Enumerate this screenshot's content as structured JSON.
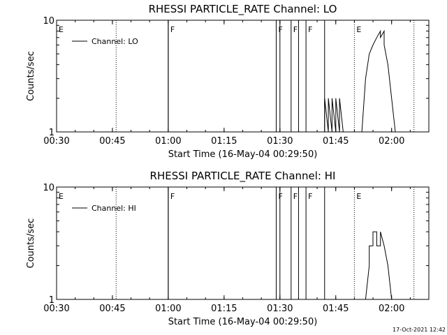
{
  "chart_data": [
    {
      "type": "line",
      "title": "RHESSI PARTICLE_RATE Channel: LO",
      "xlabel": "Start Time (16-May-04 00:29:50)",
      "ylabel": "Counts/sec",
      "y_scale": "log",
      "ylim": [
        1,
        10
      ],
      "y_ticks": [
        "1",
        "10"
      ],
      "x_ticks": [
        "00:30",
        "00:45",
        "01:00",
        "01:15",
        "01:30",
        "01:45",
        "02:00"
      ],
      "xlim": [
        "00:30",
        "02:10"
      ],
      "legend": {
        "entries": [
          "Channel: LO"
        ],
        "placement": "top-left"
      },
      "flags": [
        {
          "label": "E",
          "time": "00:30",
          "style": "solid"
        },
        {
          "label": "F",
          "time": "01:00",
          "style": "solid"
        },
        {
          "label": "F",
          "time": "01:29",
          "style": "solid"
        },
        {
          "label": "F",
          "time": "01:33",
          "style": "solid"
        },
        {
          "label": "F",
          "time": "01:37",
          "style": "solid"
        },
        {
          "label": "E",
          "time": "01:50",
          "style": "dotted"
        }
      ],
      "extra_lines": [
        {
          "time": "00:46",
          "style": "dotted"
        },
        {
          "time": "01:00",
          "style": "solid"
        },
        {
          "time": "01:30",
          "style": "solid"
        },
        {
          "time": "01:35",
          "style": "solid"
        },
        {
          "time": "01:42",
          "style": "solid"
        },
        {
          "time": "02:06",
          "style": "dotted"
        }
      ],
      "series": [
        {
          "name": "Channel: LO",
          "x": [
            "01:42",
            "01:42",
            "01:43",
            "01:43",
            "01:44",
            "01:44",
            "01:45",
            "01:45",
            "01:46",
            "01:46",
            "01:47",
            "01:52",
            "01:53",
            "01:54",
            "01:55",
            "01:56",
            "01:57",
            "01:57",
            "01:58",
            "01:58",
            "01:59",
            "02:00",
            "02:01"
          ],
          "y": [
            1,
            2,
            1,
            2,
            1,
            2,
            1,
            2,
            1,
            2,
            1,
            1,
            3,
            5,
            6,
            7,
            8,
            7,
            8,
            6,
            4,
            2,
            1
          ]
        }
      ]
    },
    {
      "type": "line",
      "title": "RHESSI PARTICLE_RATE Channel: HI",
      "xlabel": "Start Time (16-May-04 00:29:50)",
      "ylabel": "Counts/sec",
      "y_scale": "log",
      "ylim": [
        1,
        10
      ],
      "y_ticks": [
        "1",
        "10"
      ],
      "x_ticks": [
        "00:30",
        "00:45",
        "01:00",
        "01:15",
        "01:30",
        "01:45",
        "02:00"
      ],
      "xlim": [
        "00:30",
        "02:10"
      ],
      "legend": {
        "entries": [
          "Channel: HI"
        ],
        "placement": "top-left"
      },
      "flags": [
        {
          "label": "E",
          "time": "00:30",
          "style": "solid"
        },
        {
          "label": "F",
          "time": "01:00",
          "style": "solid"
        },
        {
          "label": "F",
          "time": "01:29",
          "style": "solid"
        },
        {
          "label": "F",
          "time": "01:33",
          "style": "solid"
        },
        {
          "label": "F",
          "time": "01:37",
          "style": "solid"
        },
        {
          "label": "E",
          "time": "01:50",
          "style": "dotted"
        }
      ],
      "extra_lines": [
        {
          "time": "00:46",
          "style": "dotted"
        },
        {
          "time": "01:00",
          "style": "solid"
        },
        {
          "time": "01:30",
          "style": "solid"
        },
        {
          "time": "01:35",
          "style": "solid"
        },
        {
          "time": "01:42",
          "style": "solid"
        },
        {
          "time": "02:06",
          "style": "dotted"
        }
      ],
      "series": [
        {
          "name": "Channel: HI",
          "x": [
            "01:53",
            "01:54",
            "01:54",
            "01:55",
            "01:55",
            "01:56",
            "01:56",
            "01:57",
            "01:57",
            "01:58",
            "01:59",
            "02:00"
          ],
          "y": [
            1,
            2,
            3,
            3,
            4,
            4,
            3,
            3,
            4,
            3,
            2,
            1
          ]
        }
      ]
    }
  ],
  "footer": {
    "timestamp": "17-Oct-2021 12:42"
  }
}
